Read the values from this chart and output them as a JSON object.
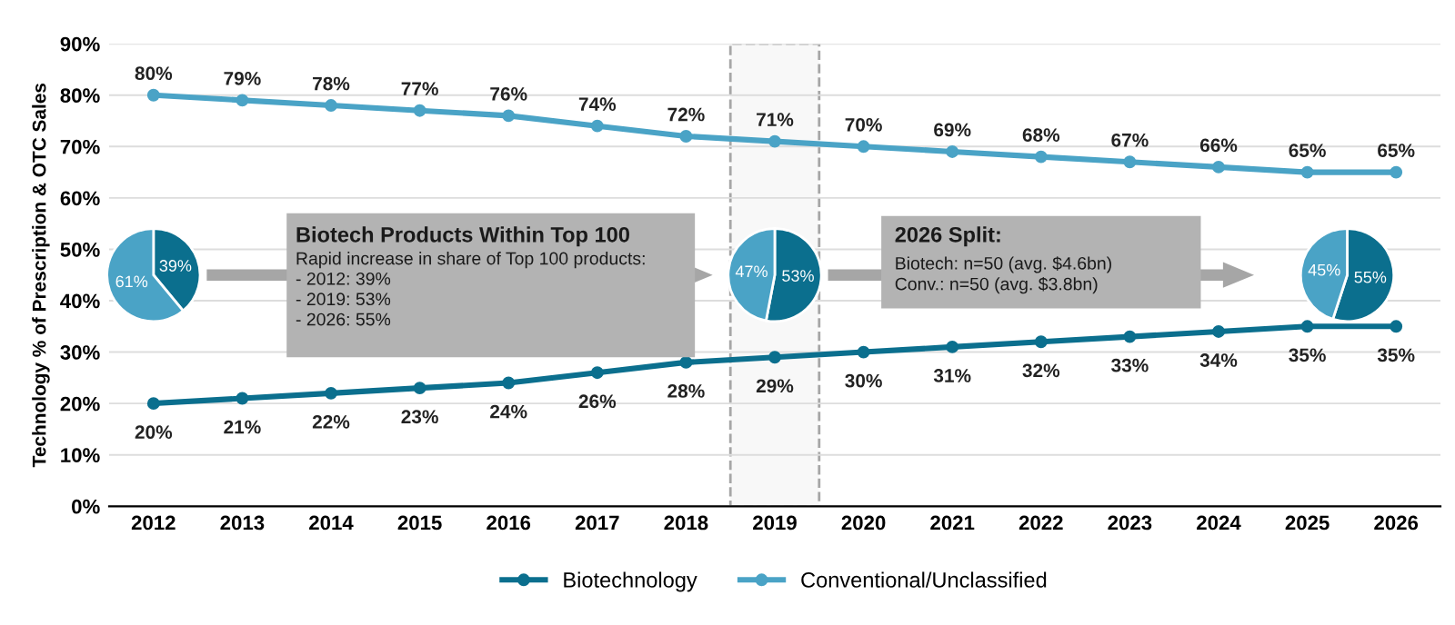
{
  "chart_data": [
    {
      "type": "line",
      "ylabel": "Technology % of Prescription & OTC Sales",
      "x": [
        2012,
        2013,
        2014,
        2015,
        2016,
        2017,
        2018,
        2019,
        2020,
        2021,
        2022,
        2023,
        2024,
        2025,
        2026
      ],
      "xlim": [
        2011.5,
        2026.5
      ],
      "xticks": [
        2012,
        2013,
        2014,
        2015,
        2016,
        2017,
        2018,
        2019,
        2020,
        2021,
        2022,
        2023,
        2024,
        2025,
        2026
      ],
      "ylim": [
        0,
        90
      ],
      "yticks": [
        {
          "value": 0,
          "label": "0%"
        },
        {
          "value": 10,
          "label": "10%"
        },
        {
          "value": 20,
          "label": "20%"
        },
        {
          "value": 30,
          "label": "30%"
        },
        {
          "value": 40,
          "label": "40%"
        },
        {
          "value": 50,
          "label": "50%"
        },
        {
          "value": 60,
          "label": "60%"
        },
        {
          "value": 70,
          "label": "70%"
        },
        {
          "value": 80,
          "label": "80%"
        },
        {
          "value": 90,
          "label": "90%"
        }
      ],
      "grid": "y",
      "legend": "bottom",
      "marker": "circle",
      "line_style": "solid",
      "series": [
        {
          "name": "Biotechnology",
          "color": "#0b6f8e",
          "values": [
            20,
            21,
            22,
            23,
            24,
            26,
            28,
            29,
            30,
            31,
            32,
            33,
            34,
            35,
            35
          ],
          "value_labels": [
            "20%",
            "21%",
            "22%",
            "23%",
            "24%",
            "26%",
            "28%",
            "29%",
            "30%",
            "31%",
            "32%",
            "33%",
            "34%",
            "35%",
            "35%"
          ]
        },
        {
          "name": "Conventional/Unclassified",
          "color": "#4aa3c6",
          "values": [
            80,
            79,
            78,
            77,
            76,
            74,
            72,
            71,
            70,
            69,
            68,
            67,
            66,
            65,
            65
          ],
          "value_labels": [
            "80%",
            "79%",
            "78%",
            "77%",
            "76%",
            "74%",
            "72%",
            "71%",
            "70%",
            "69%",
            "68%",
            "67%",
            "66%",
            "65%",
            "65%"
          ]
        }
      ],
      "bands": [
        {
          "axis": "x",
          "from": 2018.5,
          "to": 2019.5,
          "color": "#a6a6a6"
        }
      ],
      "annotations": [
        "Biotech Products Within Top 100",
        "Rapid increase in share of Top 100 products:\n- 2012: 39%\n- 2019: 53%\n- 2026: 55%",
        "2026 Split:",
        "Biotech: n=50 (avg. $4.6bn)\nConv.: n=50 (avg. $3.8bn)"
      ]
    },
    {
      "type": "pie",
      "categories": [
        null,
        null
      ],
      "values": [
        39,
        61
      ],
      "colors": [
        "#0b6f8e",
        "#4aa3c6"
      ],
      "value_labels": [
        "39%",
        "61%"
      ]
    },
    {
      "type": "pie",
      "categories": [
        null,
        null
      ],
      "values": [
        53,
        47
      ],
      "colors": [
        "#0b6f8e",
        "#4aa3c6"
      ],
      "value_labels": [
        "53%",
        "47%"
      ]
    },
    {
      "type": "pie",
      "categories": [
        null,
        null
      ],
      "values": [
        55,
        45
      ],
      "colors": [
        "#0b6f8e",
        "#4aa3c6"
      ],
      "value_labels": [
        "55%",
        "45%"
      ]
    }
  ]
}
